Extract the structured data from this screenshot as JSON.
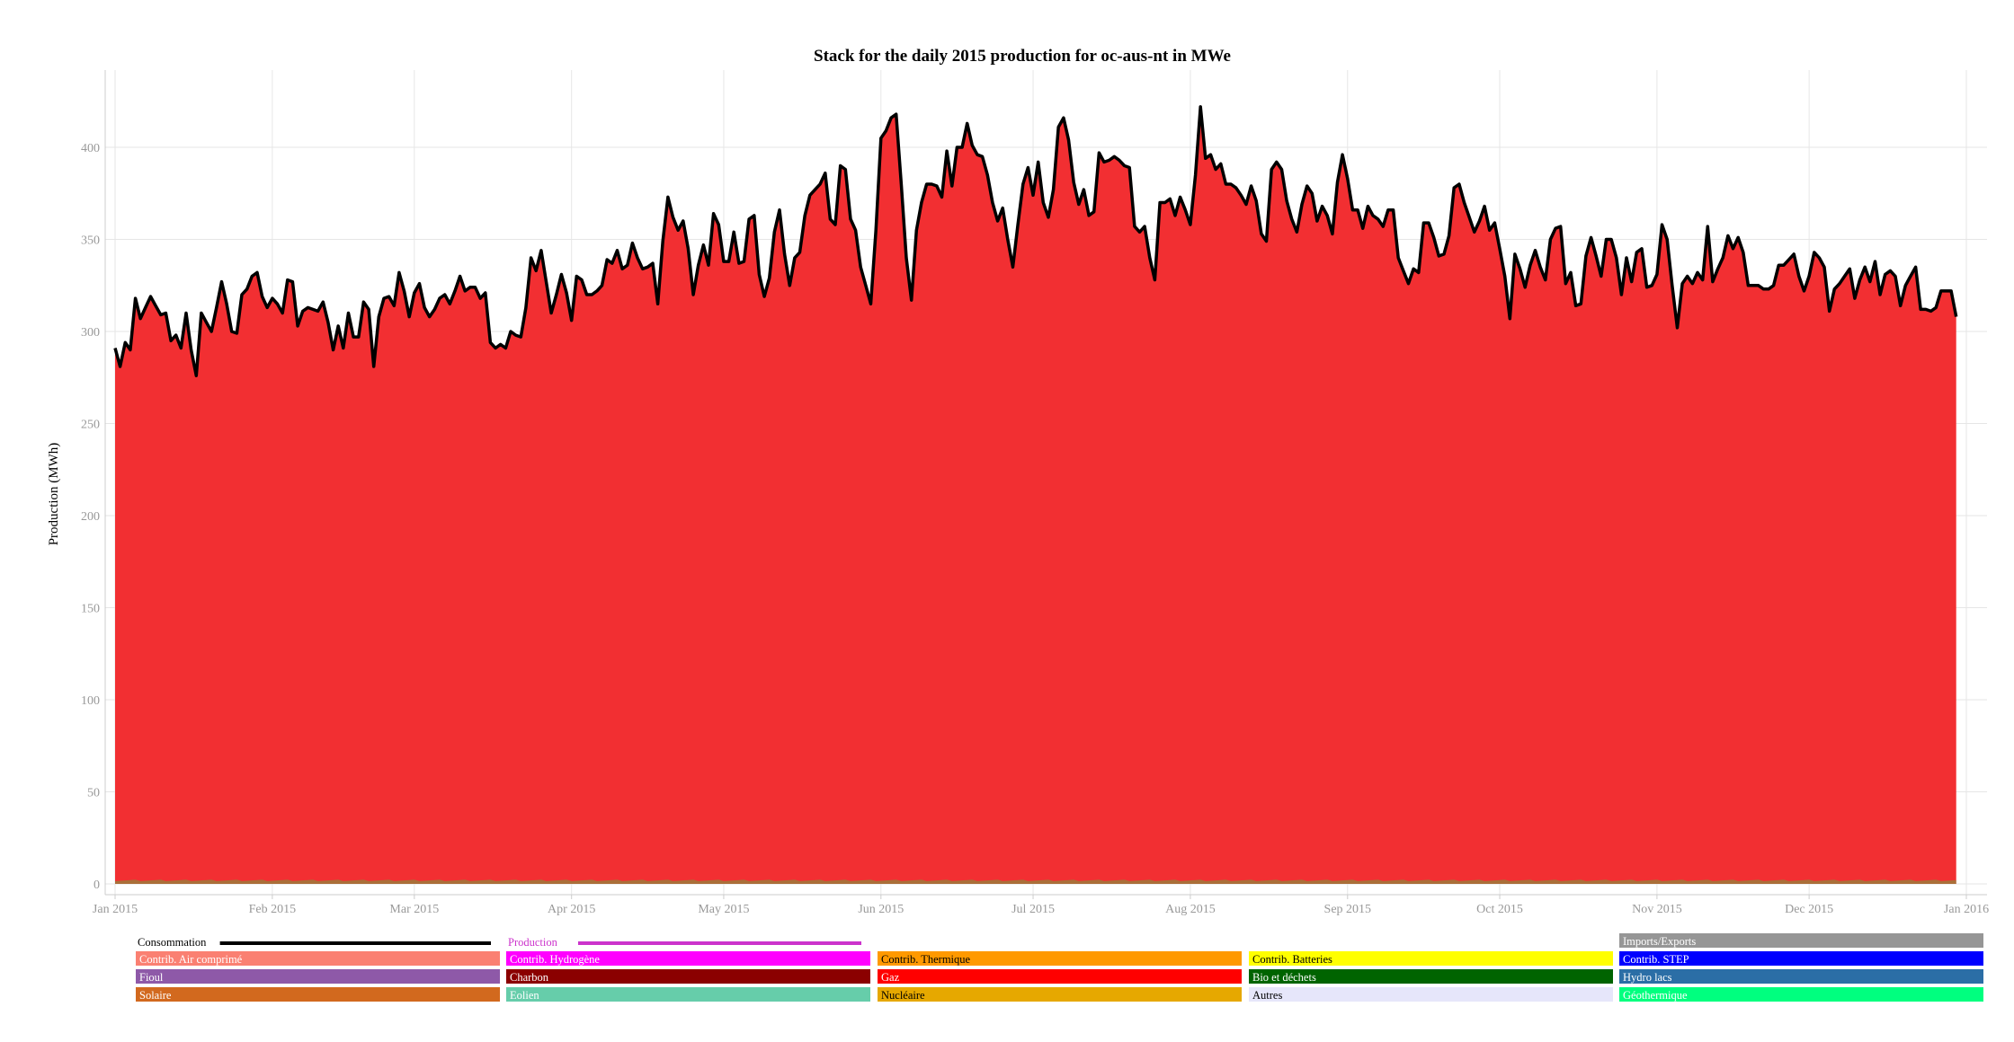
{
  "chart_data": {
    "type": "area",
    "title": "Stack for the daily 2015 production for oc-aus-nt in MWe",
    "xlabel": "",
    "ylabel": "Production (MWh)",
    "ylim": [
      0,
      420
    ],
    "x_start": "2015-01-01",
    "x_ticks": [
      "Jan 2015",
      "Feb 2015",
      "Mar 2015",
      "Apr 2015",
      "May 2015",
      "Jun 2015",
      "Jul 2015",
      "Aug 2015",
      "Sep 2015",
      "Oct 2015",
      "Nov 2015",
      "Dec 2015",
      "Jan 2016"
    ],
    "y_ticks": [
      0,
      50,
      100,
      150,
      200,
      250,
      300,
      350,
      400
    ],
    "grid": true,
    "legend_position": "bottom",
    "consumption_color": "#000000",
    "production_color": "#cc33cc",
    "stack_color": "#f22f32",
    "consumption": [
      291,
      281,
      294,
      290,
      318,
      307,
      313,
      319,
      314,
      309,
      310,
      295,
      298,
      291,
      310,
      290,
      276,
      310,
      305,
      300,
      313,
      327,
      315,
      300,
      299,
      320,
      323,
      330,
      332,
      319,
      313,
      318,
      315,
      310,
      328,
      327,
      303,
      311,
      313,
      312,
      311,
      316,
      305,
      290,
      303,
      291,
      310,
      297,
      297,
      316,
      312,
      281,
      308,
      318,
      319,
      314,
      332,
      322,
      308,
      321,
      326,
      313,
      308,
      312,
      318,
      320,
      315,
      322,
      330,
      322,
      324,
      324,
      318,
      321,
      294,
      291,
      293,
      291,
      300,
      298,
      297,
      313,
      340,
      333,
      344,
      327,
      310,
      320,
      331,
      321,
      306,
      330,
      328,
      320,
      320,
      322,
      325,
      339,
      337,
      344,
      334,
      336,
      348,
      340,
      334,
      335,
      337,
      315,
      349,
      373,
      362,
      355,
      360,
      345,
      320,
      336,
      347,
      336,
      364,
      358,
      338,
      338,
      354,
      337,
      338,
      361,
      363,
      331,
      319,
      329,
      354,
      366,
      342,
      325,
      340,
      343,
      363,
      374,
      377,
      380,
      386,
      361,
      358,
      390,
      388,
      361,
      355,
      335,
      325,
      315,
      355,
      405,
      409,
      416,
      418,
      380,
      340,
      317,
      355,
      370,
      380,
      380,
      379,
      373,
      398,
      379,
      400,
      400,
      413,
      401,
      396,
      395,
      385,
      370,
      360,
      367,
      350,
      335,
      358,
      380,
      389,
      374,
      392,
      370,
      362,
      377,
      411,
      416,
      404,
      381,
      369,
      377,
      363,
      365,
      397,
      392,
      393,
      395,
      393,
      390,
      389,
      357,
      354,
      357,
      340,
      328,
      370,
      370,
      372,
      363,
      373,
      366,
      358,
      385,
      422,
      394,
      396,
      388,
      391,
      380,
      380,
      378,
      374,
      369,
      379,
      371,
      353,
      349,
      388,
      392,
      388,
      371,
      361,
      354,
      369,
      379,
      375,
      360,
      368,
      363,
      353,
      381,
      396,
      383,
      366,
      366,
      356,
      368,
      363,
      361,
      357,
      366,
      366,
      340,
      333,
      326,
      334,
      332,
      359,
      359,
      351,
      341,
      342,
      352,
      378,
      380,
      370,
      362,
      354,
      360,
      368,
      355,
      359,
      345,
      330,
      307,
      342,
      334,
      324,
      336,
      344,
      335,
      328,
      350,
      356,
      357,
      326,
      332,
      314,
      315,
      341,
      351,
      341,
      330,
      350,
      350,
      340,
      320,
      340,
      327,
      343,
      345,
      324,
      325,
      331,
      358,
      350,
      325,
      302,
      326,
      330,
      326,
      332,
      328,
      357,
      327,
      334,
      340,
      352,
      345,
      351,
      343,
      325,
      325,
      325,
      323,
      323,
      325,
      336,
      336,
      339,
      342,
      330,
      322,
      330,
      343,
      340,
      335,
      311,
      323,
      326,
      330,
      334,
      318,
      328,
      335,
      327,
      338,
      320,
      331,
      333,
      330,
      314,
      325,
      330,
      335,
      312,
      312,
      311,
      313,
      322,
      322,
      322,
      308
    ],
    "series": [
      {
        "name": "Consommation",
        "color": "#000000"
      },
      {
        "name": "Production",
        "color": "#cc33cc"
      },
      {
        "name": "Imports/Exports",
        "color": "#969696"
      },
      {
        "name": "Contrib. Air comprimé",
        "color": "#fa8072"
      },
      {
        "name": "Contrib. Hydrogène",
        "color": "#ff00ff"
      },
      {
        "name": "Contrib. Thermique",
        "color": "#ff9900"
      },
      {
        "name": "Contrib. Batteries",
        "color": "#ffff00"
      },
      {
        "name": "Contrib. STEP",
        "color": "#0000ff"
      },
      {
        "name": "Fioul",
        "color": "#8e59a8"
      },
      {
        "name": "Charbon",
        "color": "#8b0000"
      },
      {
        "name": "Gaz",
        "color": "#ff0000"
      },
      {
        "name": "Bio et déchets",
        "color": "#006400"
      },
      {
        "name": "Hydro lacs",
        "color": "#2b6ea6"
      },
      {
        "name": "Solaire",
        "color": "#d2691e"
      },
      {
        "name": "Eolien",
        "color": "#66cdaa"
      },
      {
        "name": "Nucléaire",
        "color": "#e6a800"
      },
      {
        "name": "Autres",
        "color": "#e6e6fa"
      },
      {
        "name": "Géothermique",
        "color": "#00ff7f"
      }
    ]
  }
}
